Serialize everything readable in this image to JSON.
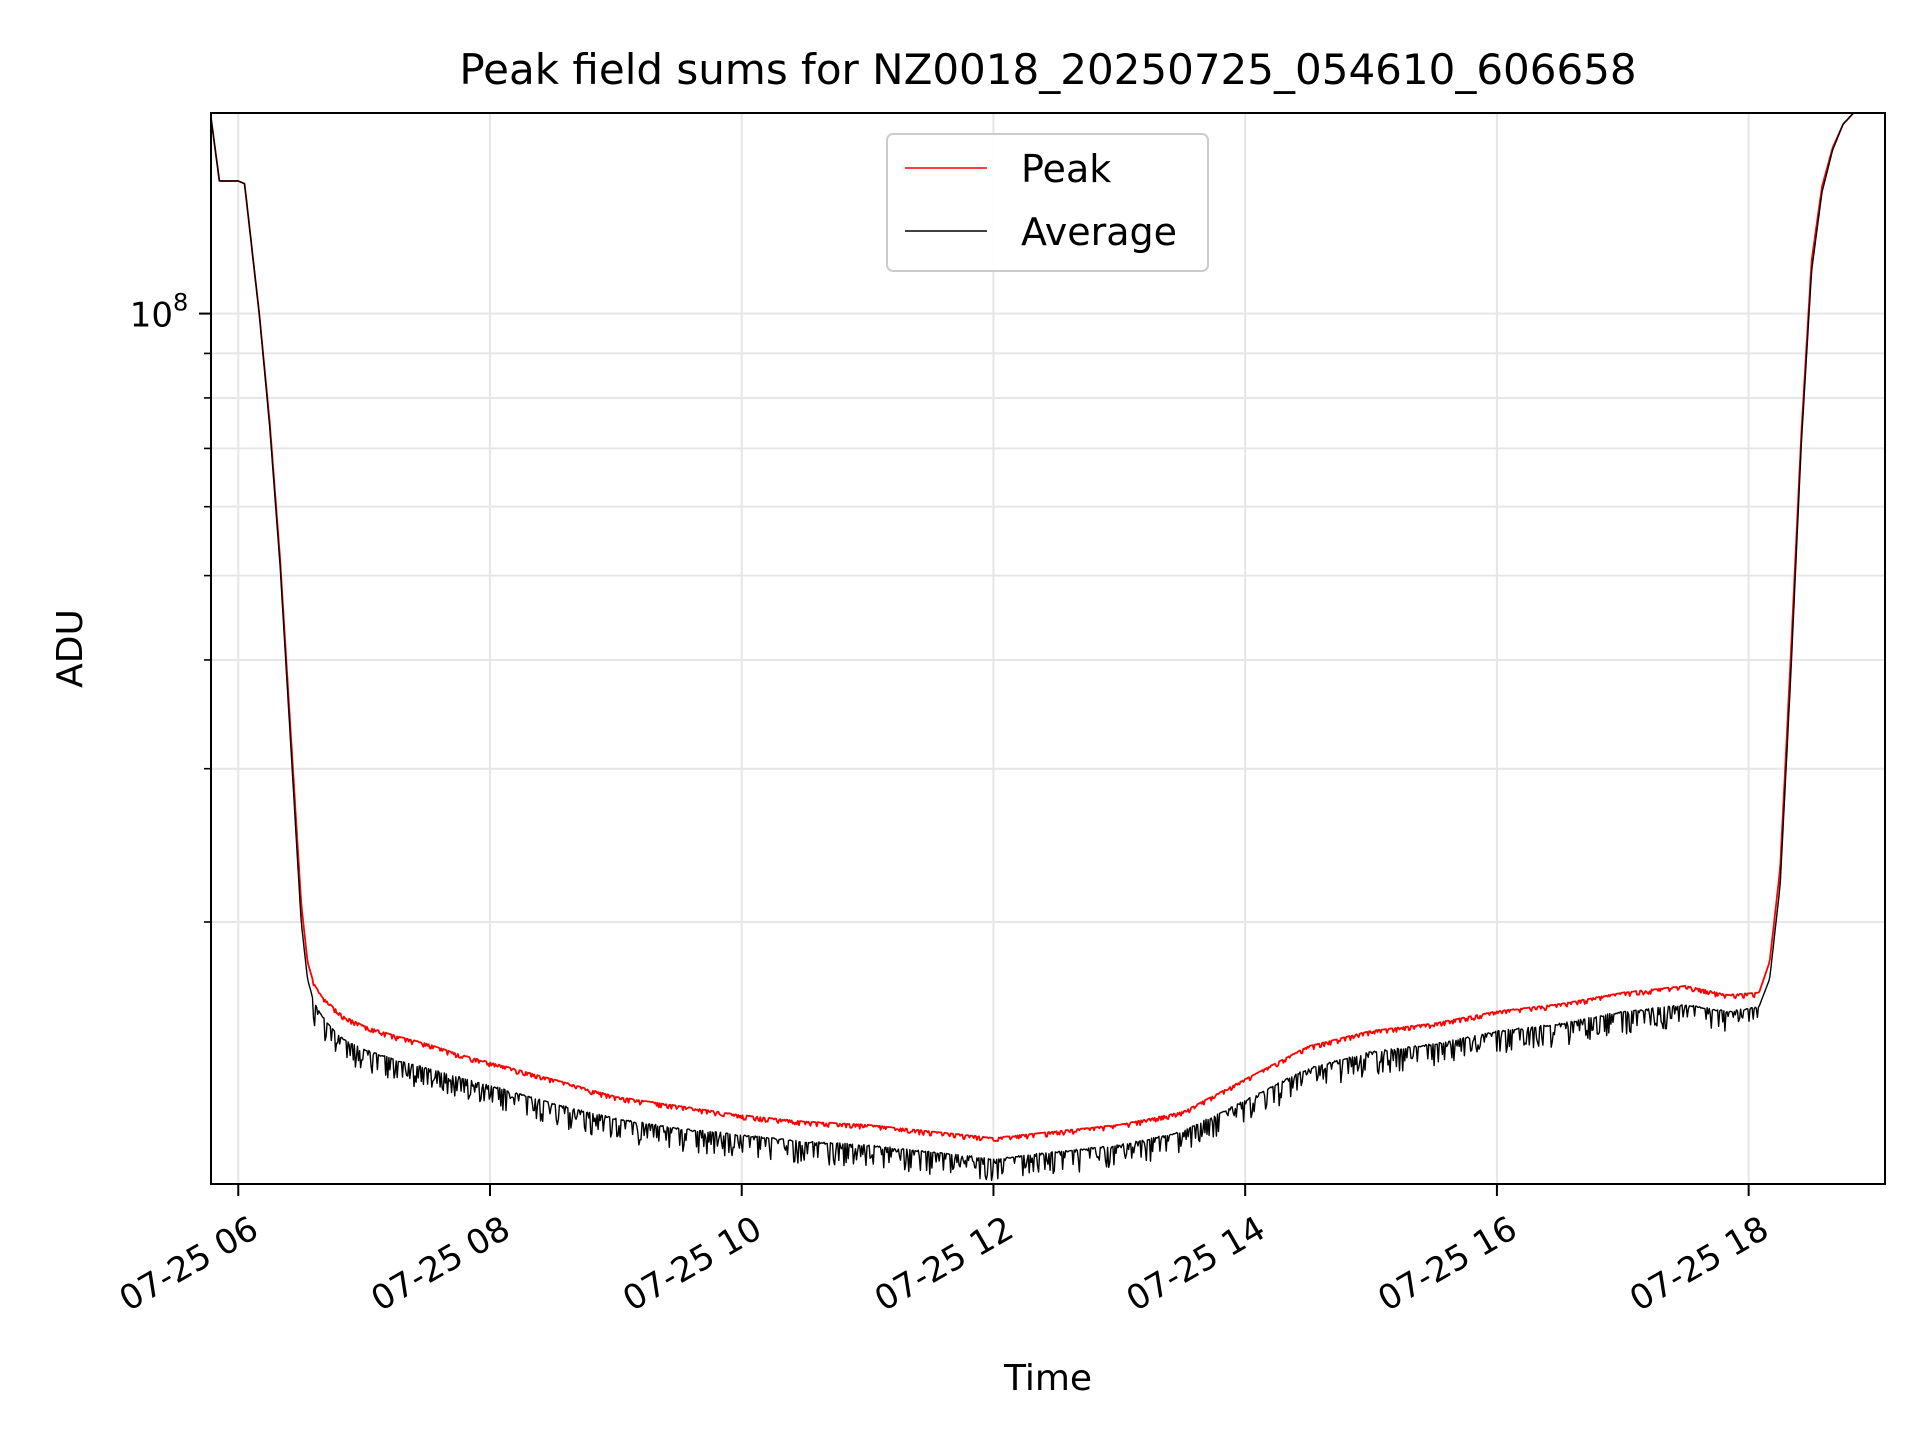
{
  "chart_data": {
    "type": "line",
    "title": "Peak field sums for NZ0018_20250725_054610_606658",
    "xlabel": "Time",
    "ylabel": "ADU",
    "y_scale": "log",
    "ylim": [
      10000000,
      170000000
    ],
    "xlim": [
      "07-25 05:47",
      "07-25 19:05"
    ],
    "x_tick_labels": [
      "07-25 06",
      "07-25 08",
      "07-25 10",
      "07-25 12",
      "07-25 14",
      "07-25 16",
      "07-25 18"
    ],
    "x_tick_values": [
      "07-25 06:00",
      "07-25 08:00",
      "07-25 10:00",
      "07-25 12:00",
      "07-25 14:00",
      "07-25 16:00",
      "07-25 18:00"
    ],
    "y_major_ticks": [
      {
        "value": 100000000,
        "base": "10",
        "exp": "8"
      }
    ],
    "y_minor_ticks": [
      20000000,
      30000000,
      40000000,
      50000000,
      60000000,
      70000000,
      80000000,
      90000000
    ],
    "grid": true,
    "legend_position": "upper center",
    "colors": {
      "peak": "#ff0000",
      "average": "#000000"
    },
    "series": [
      {
        "name": "Peak",
        "color": "#ff0000",
        "x": [
          "07-25 05:47",
          "07-25 05:51",
          "07-25 06:00",
          "07-25 06:03",
          "07-25 06:10",
          "07-25 06:15",
          "07-25 06:20",
          "07-25 06:25",
          "07-25 06:30",
          "07-25 06:33",
          "07-25 06:36",
          "07-25 06:40",
          "07-25 06:45",
          "07-25 06:50",
          "07-25 07:00",
          "07-25 07:15",
          "07-25 07:30",
          "07-25 07:45",
          "07-25 08:00",
          "07-25 08:30",
          "07-25 09:00",
          "07-25 09:30",
          "07-25 10:00",
          "07-25 10:30",
          "07-25 11:00",
          "07-25 11:30",
          "07-25 12:00",
          "07-25 12:30",
          "07-25 13:00",
          "07-25 13:30",
          "07-25 14:00",
          "07-25 14:30",
          "07-25 15:00",
          "07-25 15:30",
          "07-25 16:00",
          "07-25 16:30",
          "07-25 17:00",
          "07-25 17:30",
          "07-25 17:50",
          "07-25 18:05",
          "07-25 18:10",
          "07-25 18:15",
          "07-25 18:20",
          "07-25 18:25",
          "07-25 18:30",
          "07-25 18:35",
          "07-25 18:40",
          "07-25 18:45",
          "07-25 18:50",
          "07-25 18:55",
          "07-25 19:05"
        ],
        "values": [
          168000000,
          142000000,
          142000000,
          141000000,
          100000000,
          75000000,
          52000000,
          33000000,
          21000000,
          18000000,
          17000000,
          16400000,
          16000000,
          15600000,
          15200000,
          14800000,
          14500000,
          14100000,
          13800000,
          13200000,
          12600000,
          12300000,
          12000000,
          11800000,
          11700000,
          11500000,
          11300000,
          11500000,
          11700000,
          12100000,
          13200000,
          14400000,
          15000000,
          15300000,
          15800000,
          16100000,
          16600000,
          16900000,
          16500000,
          16600000,
          18000000,
          23000000,
          40000000,
          72000000,
          115000000,
          140000000,
          155000000,
          165000000,
          170000000,
          170000000,
          170000000
        ]
      },
      {
        "name": "Average",
        "color": "#000000",
        "x": [
          "07-25 05:47",
          "07-25 05:51",
          "07-25 06:00",
          "07-25 06:03",
          "07-25 06:10",
          "07-25 06:15",
          "07-25 06:20",
          "07-25 06:25",
          "07-25 06:30",
          "07-25 06:33",
          "07-25 06:36",
          "07-25 06:40",
          "07-25 06:45",
          "07-25 06:50",
          "07-25 07:00",
          "07-25 07:15",
          "07-25 07:30",
          "07-25 07:45",
          "07-25 08:00",
          "07-25 08:30",
          "07-25 09:00",
          "07-25 09:30",
          "07-25 10:00",
          "07-25 10:30",
          "07-25 11:00",
          "07-25 11:30",
          "07-25 12:00",
          "07-25 12:30",
          "07-25 13:00",
          "07-25 13:30",
          "07-25 14:00",
          "07-25 14:30",
          "07-25 15:00",
          "07-25 15:30",
          "07-25 16:00",
          "07-25 16:30",
          "07-25 17:00",
          "07-25 17:30",
          "07-25 17:50",
          "07-25 18:05",
          "07-25 18:10",
          "07-25 18:15",
          "07-25 18:20",
          "07-25 18:25",
          "07-25 18:30",
          "07-25 18:35",
          "07-25 18:40",
          "07-25 18:45",
          "07-25 18:50",
          "07-25 18:55",
          "07-25 19:05"
        ],
        "values": [
          168000000,
          142000000,
          142000000,
          141000000,
          100000000,
          74000000,
          51000000,
          32000000,
          20000000,
          17200000,
          16200000,
          15600000,
          15100000,
          14700000,
          14300000,
          13900000,
          13600000,
          13300000,
          13000000,
          12400000,
          11900000,
          11600000,
          11400000,
          11200000,
          11100000,
          10900000,
          10700000,
          10900000,
          11100000,
          11500000,
          12500000,
          13600000,
          14200000,
          14500000,
          15000000,
          15300000,
          15800000,
          16100000,
          15800000,
          16000000,
          17200000,
          22000000,
          38000000,
          70000000,
          112000000,
          138000000,
          154000000,
          165000000,
          170000000,
          170000000,
          170000000
        ]
      }
    ]
  }
}
